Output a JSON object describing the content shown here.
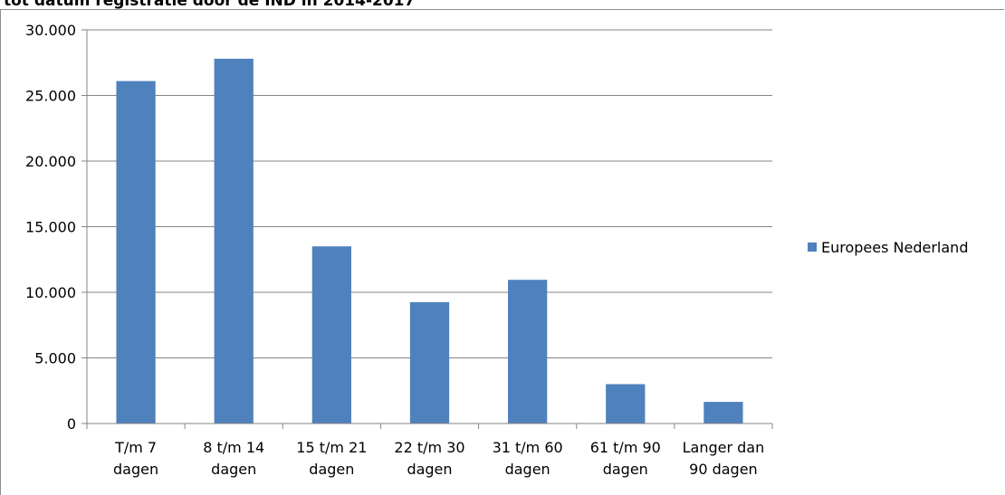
{
  "chart_data": {
    "type": "bar",
    "title": "tot datum registratie door de IND in 2014-2017",
    "xlabel": "",
    "ylabel": "",
    "categories": [
      [
        "T/m 7",
        "dagen"
      ],
      [
        "8 t/m 14",
        "dagen"
      ],
      [
        "15 t/m 21",
        "dagen"
      ],
      [
        "22 t/m 30",
        "dagen"
      ],
      [
        "31 t/m 60",
        "dagen"
      ],
      [
        "61 t/m 90",
        "dagen"
      ],
      [
        "Langer dan",
        "90 dagen"
      ]
    ],
    "series": [
      {
        "name": "Europees Nederland",
        "values": [
          26100,
          27800,
          13500,
          9250,
          10950,
          3000,
          1650
        ]
      }
    ],
    "ylim": [
      0,
      30000
    ],
    "yticks": [
      0,
      5000,
      10000,
      15000,
      20000,
      25000,
      30000
    ],
    "ytick_labels": [
      "0",
      "5.000",
      "10.000",
      "15.000",
      "20.000",
      "25.000",
      "30.000"
    ],
    "grid": true,
    "legend_position": "right",
    "colors": {
      "bar": "#4f81bd",
      "grid": "#868686",
      "axis": "#868686"
    }
  }
}
